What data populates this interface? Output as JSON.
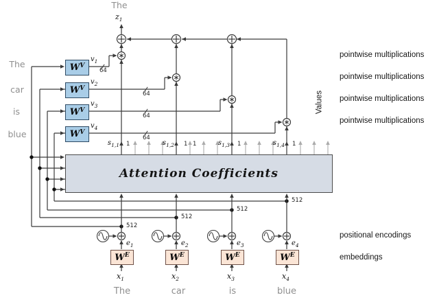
{
  "top": {
    "word": "The",
    "output": {
      "base": "z",
      "sub": "1"
    }
  },
  "left_words": [
    "The",
    "car",
    "is",
    "blue"
  ],
  "bottom_words": [
    "The",
    "car",
    "is",
    "blue"
  ],
  "attention_box": {
    "label": "Attention Coefficients"
  },
  "value_weights": [
    {
      "base": "W",
      "sup": "V",
      "out": {
        "base": "v",
        "sub": "1"
      },
      "dim": "64"
    },
    {
      "base": "W",
      "sup": "V",
      "out": {
        "base": "v",
        "sub": "2"
      },
      "dim": "64"
    },
    {
      "base": "W",
      "sup": "V",
      "out": {
        "base": "v",
        "sub": "3"
      },
      "dim": "64"
    },
    {
      "base": "W",
      "sup": "V",
      "out": {
        "base": "v",
        "sub": "4"
      },
      "dim": "64"
    }
  ],
  "scores": [
    {
      "base": "s",
      "sub": "1,1",
      "dim": "1"
    },
    {
      "base": "s",
      "sub": "1,2",
      "dim": "1",
      "second_dim": "1"
    },
    {
      "base": "s",
      "sub": "1,3",
      "dim": "1"
    },
    {
      "base": "s",
      "sub": "1,4",
      "dim": "1"
    }
  ],
  "embeddings": [
    {
      "base": "W",
      "sup": "E",
      "out": {
        "base": "e",
        "sub": "1"
      },
      "in": {
        "base": "x",
        "sub": "1"
      },
      "dim": "512"
    },
    {
      "base": "W",
      "sup": "E",
      "out": {
        "base": "e",
        "sub": "2"
      },
      "in": {
        "base": "x",
        "sub": "2"
      },
      "dim": "512"
    },
    {
      "base": "W",
      "sup": "E",
      "out": {
        "base": "e",
        "sub": "3"
      },
      "in": {
        "base": "x",
        "sub": "3"
      },
      "dim": "512"
    },
    {
      "base": "W",
      "sup": "E",
      "out": {
        "base": "e",
        "sub": "4"
      },
      "in": {
        "base": "x",
        "sub": "4"
      },
      "dim": "512"
    }
  ],
  "annotations": {
    "pointwise": [
      "pointwise multiplications",
      "pointwise multiplications",
      "pointwise multiplications",
      "pointwise multiplications"
    ],
    "values_axis": "Values",
    "positional": "positional encodings",
    "embeddings_label": "embeddings"
  },
  "colors": {
    "value_box": "#a9cde7",
    "embed_box": "#fbe5d6",
    "attention_box": "#d6dce5",
    "wire": "#3a3a3a",
    "muted_arrow": "#ababab",
    "word": "#8f8f8f"
  }
}
